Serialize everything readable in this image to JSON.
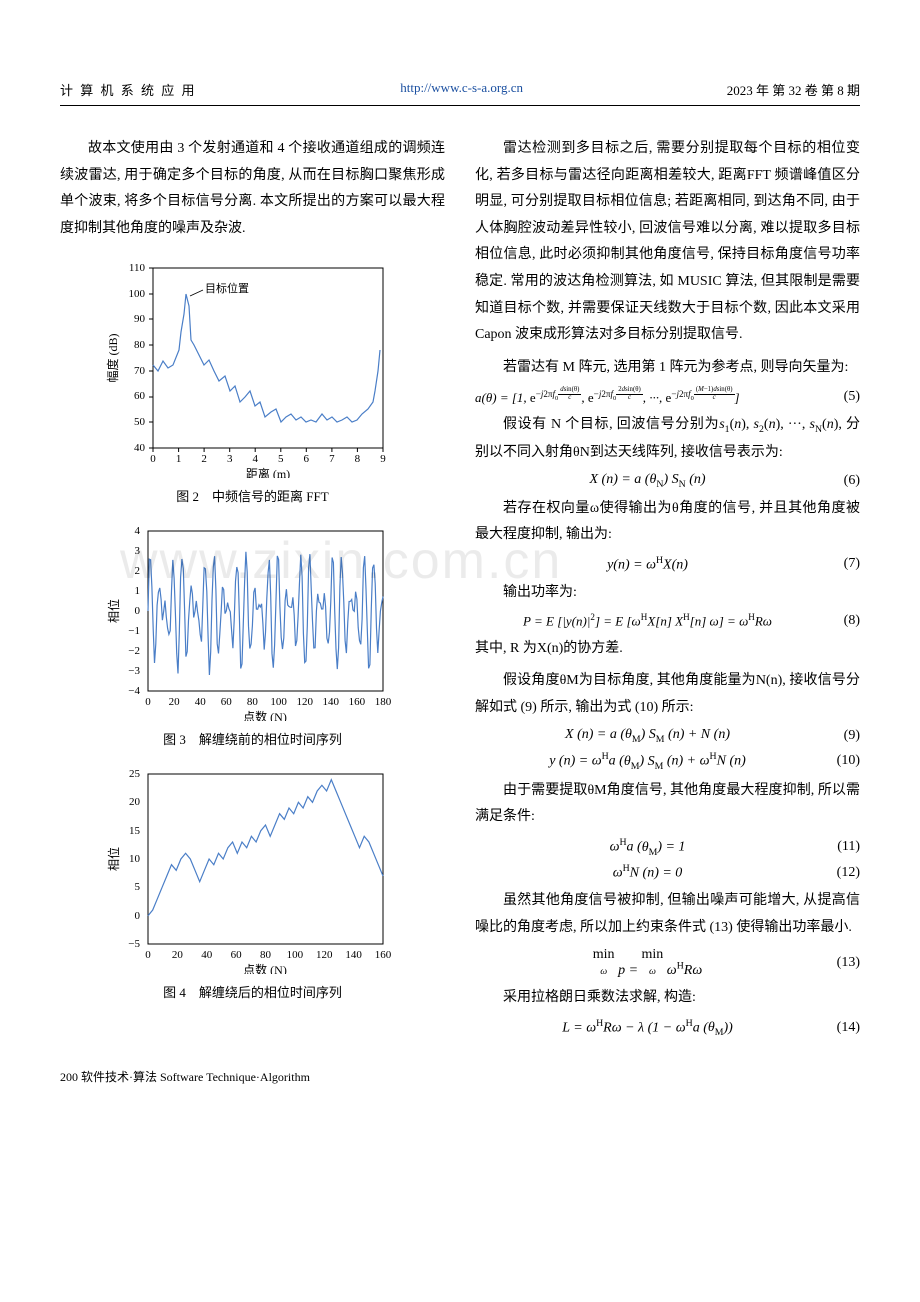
{
  "header": {
    "left": "计 算 机 系 统 应 用",
    "center": "http://www.c-s-a.org.cn",
    "right": "2023 年 第 32 卷 第 8 期"
  },
  "left_col": {
    "p1": "故本文使用由 3 个发射通道和 4 个接收通道组成的调频连续波雷达, 用于确定多个目标的角度, 从而在目标胸口聚焦形成单个波束, 将多个目标信号分离. 本文所提出的方案可以最大程度抑制其他角度的噪声及杂波.",
    "fig2": {
      "caption": "图 2　中频信号的距离 FFT",
      "xlabel": "距离 (m)",
      "ylabel": "幅度 (dB)",
      "annotation": "目标位置",
      "xlim": [
        0,
        9
      ],
      "xtick_step": 1,
      "ylim": [
        40,
        110
      ],
      "ytick_step": 10,
      "line_color": "#4a7ec7",
      "data_x": [
        0,
        0.2,
        0.4,
        0.6,
        0.8,
        1.0,
        1.1,
        1.2,
        1.3,
        1.4,
        1.5,
        1.6,
        1.8,
        2.0,
        2.2,
        2.4,
        2.6,
        2.8,
        3.0,
        3.2,
        3.4,
        3.6,
        3.8,
        4.0,
        4.2,
        4.4,
        4.6,
        4.8,
        5.0,
        5.2,
        5.4,
        5.6,
        5.8,
        6.0,
        6.2,
        6.4,
        6.6,
        6.8,
        7.0,
        7.2,
        7.4,
        7.6,
        7.8,
        8.0,
        8.2,
        8.4,
        8.6,
        8.7,
        8.8,
        8.9
      ],
      "data_y": [
        72,
        70,
        74,
        71,
        72,
        78,
        85,
        92,
        100,
        95,
        82,
        80,
        76,
        72,
        74,
        70,
        66,
        68,
        62,
        64,
        58,
        60,
        62,
        56,
        58,
        52,
        54,
        55,
        50,
        52,
        53,
        51,
        52,
        50,
        51,
        50,
        53,
        51,
        52,
        50,
        51,
        52,
        50,
        51,
        53,
        55,
        58,
        62,
        70,
        78
      ]
    },
    "fig3": {
      "caption": "图 3　解缠绕前的相位时间序列",
      "xlabel": "点数 (N)",
      "ylabel": "相位",
      "xlim": [
        0,
        180
      ],
      "xtick_step": 20,
      "ylim": [
        -4,
        4
      ],
      "ytick_step": 1,
      "line_color": "#4a7ec7"
    },
    "fig4": {
      "caption": "图 4　解缠绕后的相位时间序列",
      "xlabel": "点数 (N)",
      "ylabel": "相位",
      "xlim": [
        0,
        180
      ],
      "xtick_step": 20,
      "ylim": [
        -5,
        25
      ],
      "ytick_step": 5,
      "line_color": "#4a7ec7"
    }
  },
  "right_col": {
    "p1": "雷达检测到多目标之后, 需要分别提取每个目标的相位变化, 若多目标与雷达径向距离相差较大, 距离FFT 频谱峰值区分明显, 可分别提取目标相位信息; 若距离相同, 到达角不同, 由于人体胸腔波动差异性较小, 回波信号难以分离, 难以提取多目标相位信息, 此时必须抑制其他角度信号, 保持目标角度信号功率稳定. 常用的波达角检测算法, 如 MUSIC 算法, 但其限制是需要知道目标个数, 并需要保证天线数大于目标个数, 因此本文采用 Capon 波束成形算法对多目标分别提取信号.",
    "p2": "若雷达有 M 阵元, 选用第 1 阵元为参考点, 则导向矢量为:",
    "eq5_num": "(5)",
    "p3a": "假设有 N 个目标, 回波信号分别为",
    "p3b": ", 分别以不同入射角θN到达天线阵列, 接收信号表示为:",
    "eq6": "X (n) = a (θN) S N (n)",
    "eq6_num": "(6)",
    "p4": "若存在权向量ω使得输出为θ角度的信号, 并且其他角度被最大程度抑制, 输出为:",
    "eq7_num": "(7)",
    "p5": "输出功率为:",
    "eq8_num": "(8)",
    "p6": "其中, R 为X(n)的协方差.",
    "p7": "假设角度θM为目标角度, 其他角度能量为N(n), 接收信号分解如式 (9) 所示, 输出为式 (10) 所示:",
    "eq9": "X (n) = a (θM) S M (n) + N (n)",
    "eq9_num": "(9)",
    "eq10_num": "(10)",
    "p8": "由于需要提取θM角度信号, 其他角度最大程度抑制, 所以需满足条件:",
    "eq11_num": "(11)",
    "eq12_num": "(12)",
    "p9": "虽然其他角度信号被抑制, 但输出噪声可能增大, 从提高信噪比的角度考虑, 所以加上约束条件式 (13) 使得输出功率最小.",
    "eq13_num": "(13)",
    "p10": "采用拉格朗日乘数法求解, 构造:",
    "eq14_num": "(14)"
  },
  "footer": "200 软件技术·算法 Software Technique·Algorithm",
  "watermark": "www.zixin.com.cn"
}
